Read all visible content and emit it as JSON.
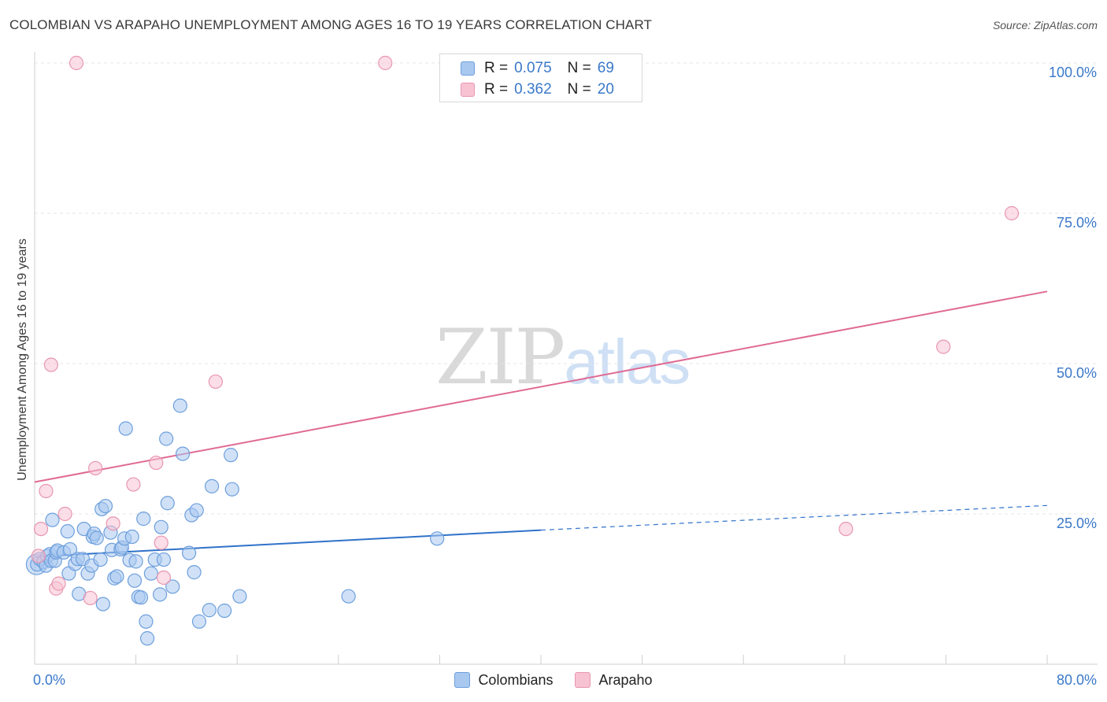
{
  "title": "COLOMBIAN VS ARAPAHO UNEMPLOYMENT AMONG AGES 16 TO 19 YEARS CORRELATION CHART",
  "source": "Source: ZipAtlas.com",
  "watermark": {
    "zip": "ZIP",
    "atlas": "atlas"
  },
  "legend_stats": [
    {
      "r_label": "R =",
      "r_value": "0.075",
      "n_label": "N =",
      "n_value": "69",
      "color": "#a9c8f0",
      "border": "#6d9fdc"
    },
    {
      "r_label": "R =",
      "r_value": "0.362",
      "n_label": "N =",
      "n_value": "20",
      "color": "#f7c3d3",
      "border": "#e896b0"
    }
  ],
  "legend_series": [
    {
      "name": "Colombians",
      "color": "#a9c8f0",
      "border": "#6d9fdc"
    },
    {
      "name": "Arapaho",
      "color": "#f7c3d3",
      "border": "#e896b0"
    }
  ],
  "chart_data": {
    "type": "scatter",
    "title": "COLOMBIAN VS ARAPAHO UNEMPLOYMENT AMONG AGES 16 TO 19 YEARS CORRELATION CHART",
    "xlabel": "",
    "ylabel": "Unemployment Among Ages 16 to 19 years",
    "xlim": [
      0,
      80
    ],
    "ylim": [
      0,
      100
    ],
    "x_tick_labels": [
      "0.0%",
      "80.0%"
    ],
    "y_ticks": [
      25,
      50,
      75,
      100
    ],
    "y_tick_labels": [
      "25.0%",
      "50.0%",
      "75.0%",
      "100.0%"
    ],
    "grid": true,
    "legend": "top-center",
    "series": [
      {
        "name": "Colombians",
        "color": "#6d9fdc",
        "fill": "#a9c8f0",
        "trend": {
          "x0": 0,
          "y0": 17.9,
          "x1": 40,
          "y1": 22.3,
          "dash_to_x": 80,
          "dash_to_y": 26.4,
          "color": "#2f72c9"
        },
        "points": [
          [
            0.2,
            16.6
          ],
          [
            0.4,
            17.5
          ],
          [
            0.7,
            17.0
          ],
          [
            0.9,
            16.4
          ],
          [
            1.0,
            18.0
          ],
          [
            1.2,
            18.3
          ],
          [
            1.3,
            17.2
          ],
          [
            1.4,
            24.0
          ],
          [
            1.6,
            17.2
          ],
          [
            1.7,
            18.6
          ],
          [
            1.8,
            18.9
          ],
          [
            2.3,
            18.6
          ],
          [
            2.6,
            22.1
          ],
          [
            2.7,
            15.1
          ],
          [
            2.8,
            19.1
          ],
          [
            3.2,
            16.7
          ],
          [
            3.4,
            17.5
          ],
          [
            3.5,
            11.7
          ],
          [
            3.8,
            17.5
          ],
          [
            3.9,
            22.5
          ],
          [
            4.2,
            15.1
          ],
          [
            4.5,
            16.4
          ],
          [
            4.6,
            21.2
          ],
          [
            4.7,
            21.7
          ],
          [
            4.9,
            21.0
          ],
          [
            5.2,
            17.4
          ],
          [
            5.3,
            25.8
          ],
          [
            5.4,
            10.0
          ],
          [
            5.6,
            26.3
          ],
          [
            6.0,
            21.9
          ],
          [
            6.1,
            19.0
          ],
          [
            6.3,
            14.3
          ],
          [
            6.5,
            14.6
          ],
          [
            6.8,
            19.1
          ],
          [
            6.9,
            19.4
          ],
          [
            7.1,
            20.9
          ],
          [
            7.2,
            39.2
          ],
          [
            7.5,
            17.3
          ],
          [
            7.7,
            21.2
          ],
          [
            7.9,
            13.9
          ],
          [
            8.0,
            17.1
          ],
          [
            8.2,
            11.2
          ],
          [
            8.4,
            11.1
          ],
          [
            8.6,
            24.2
          ],
          [
            8.8,
            7.1
          ],
          [
            8.9,
            4.3
          ],
          [
            9.2,
            15.1
          ],
          [
            9.5,
            17.4
          ],
          [
            9.9,
            11.6
          ],
          [
            10.0,
            22.8
          ],
          [
            10.2,
            17.4
          ],
          [
            10.4,
            37.5
          ],
          [
            10.5,
            26.8
          ],
          [
            10.9,
            12.9
          ],
          [
            11.5,
            43.0
          ],
          [
            11.7,
            35.0
          ],
          [
            12.2,
            18.5
          ],
          [
            12.4,
            24.8
          ],
          [
            12.6,
            15.3
          ],
          [
            12.8,
            25.6
          ],
          [
            13.0,
            7.1
          ],
          [
            13.8,
            9.0
          ],
          [
            14.0,
            29.6
          ],
          [
            15.0,
            8.9
          ],
          [
            15.5,
            34.8
          ],
          [
            15.6,
            29.1
          ],
          [
            16.2,
            11.3
          ],
          [
            24.8,
            11.3
          ],
          [
            31.8,
            20.9
          ]
        ]
      },
      {
        "name": "Arapaho",
        "color": "#e896b0",
        "fill": "#f7c3d3",
        "trend": {
          "x0": 0,
          "y0": 30.3,
          "x1": 80,
          "y1": 62.0,
          "color": "#e06a93"
        },
        "points": [
          [
            0.5,
            22.5
          ],
          [
            0.9,
            28.8
          ],
          [
            1.3,
            49.8
          ],
          [
            1.7,
            12.6
          ],
          [
            1.9,
            13.4
          ],
          [
            2.4,
            25.0
          ],
          [
            3.3,
            100.0
          ],
          [
            4.4,
            11.0
          ],
          [
            4.8,
            32.6
          ],
          [
            6.2,
            23.4
          ],
          [
            7.8,
            29.9
          ],
          [
            9.6,
            33.5
          ],
          [
            10.0,
            20.2
          ],
          [
            10.2,
            14.4
          ],
          [
            14.3,
            47.0
          ],
          [
            27.7,
            100.0
          ],
          [
            64.1,
            22.5
          ],
          [
            71.8,
            52.8
          ],
          [
            77.2,
            75.0
          ],
          [
            0.3,
            18.0
          ]
        ]
      }
    ]
  }
}
